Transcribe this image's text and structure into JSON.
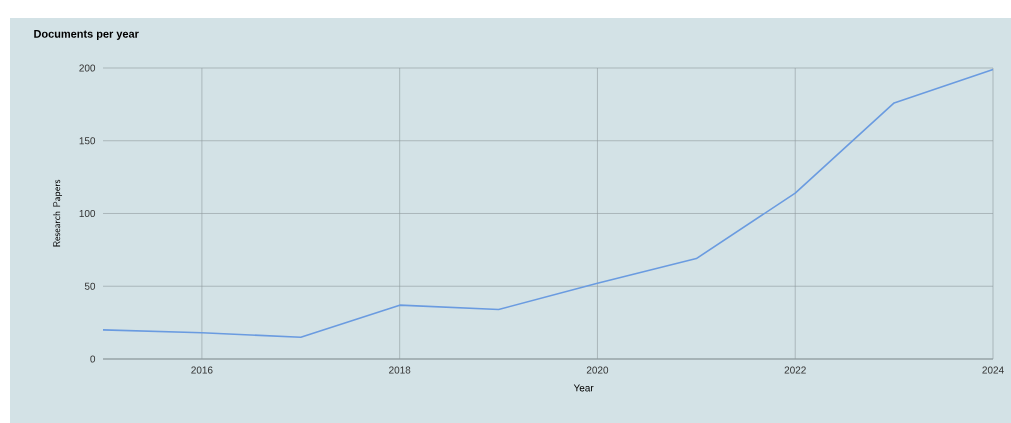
{
  "chart_data": {
    "type": "line",
    "title": "Documents per year",
    "xlabel": "Year",
    "ylabel": "Research Papers",
    "x": [
      2015,
      2016,
      2017,
      2018,
      2019,
      2020,
      2021,
      2022,
      2023,
      2024
    ],
    "series": [
      {
        "color": "#6a9be0",
        "values": [
          20,
          18,
          15,
          37,
          34,
          52,
          69,
          114,
          176,
          199
        ]
      }
    ],
    "xlim": [
      2015,
      2024
    ],
    "xticks": [
      2016,
      2018,
      2020,
      2022,
      2024
    ],
    "ylim": [
      0,
      200
    ],
    "yticks": [
      0,
      50,
      100,
      150,
      200
    ],
    "grid": true,
    "marker": "none",
    "line_style": "solid"
  }
}
